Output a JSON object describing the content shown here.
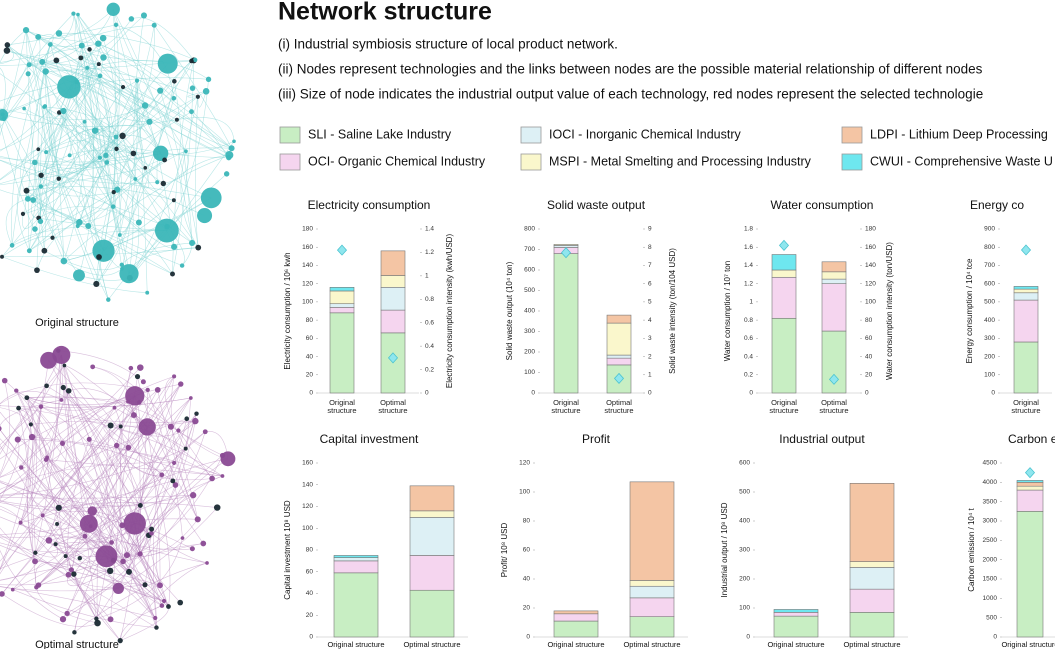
{
  "header": {
    "title": "Network structure",
    "lines": [
      "(i) Industrial symbiosis structure of local product network.",
      "(ii) Nodes represent technologies and the links between nodes are the possible material relationship of different nodes",
      "(iii) Size of node indicates the industrial output value of each technology, red nodes represent the selected technologie"
    ]
  },
  "network_labels": [
    "Original structure",
    "Optimal structure"
  ],
  "legend": [
    {
      "name": "SLI - Saline Lake Industry",
      "color": "#c8eec3"
    },
    {
      "name": "OCI- Organic Chemical Industry",
      "color": "#f5d5ef"
    },
    {
      "name": "IOCI - Inorganic Chemical Industry",
      "color": "#ddf0f5"
    },
    {
      "name": "MSPI - Metal Smelting and Processing Industry",
      "color": "#faf7cc"
    },
    {
      "name": "LDPI - Lithium Deep Processing",
      "color": "#f4c5a4"
    },
    {
      "name": "CWUI - Comprehensive Waste U",
      "color": "#6ee7ef"
    }
  ],
  "chart_data": [
    {
      "type": "bar",
      "title": "Electricity consumption",
      "ylabel": "Electricity consumption / 10⁶ kwh",
      "y2label": "Electricity consumption intensity (kwh/USD)",
      "categories": [
        "Original structure",
        "Optimal structure"
      ],
      "series": [
        {
          "values": [
            88,
            66
          ]
        },
        {
          "values": [
            6,
            25
          ]
        },
        {
          "values": [
            4,
            25
          ]
        },
        {
          "values": [
            14,
            13
          ]
        },
        {
          "values": [
            0,
            27
          ]
        },
        {
          "values": [
            4,
            0
          ]
        }
      ],
      "markers": {
        "axis": "y2",
        "values": [
          1.22,
          0.3
        ]
      },
      "ylim": [
        0,
        180
      ],
      "yticks": [
        0,
        20,
        40,
        60,
        80,
        100,
        120,
        140,
        160,
        180
      ],
      "y2lim": [
        0,
        1.4
      ],
      "y2ticks": [
        0,
        0.2,
        0.4,
        0.6,
        0.8,
        1,
        1.2,
        1.4
      ]
    },
    {
      "type": "bar",
      "title": "Solid waste output",
      "ylabel": "Solid waste output (10⁴ ton)",
      "y2label": "Solid waste intensity (ton/104 USD)",
      "categories": [
        "Original structure",
        "Optimal structure"
      ],
      "series": [
        {
          "values": [
            680,
            137
          ]
        },
        {
          "values": [
            30,
            33
          ]
        },
        {
          "values": [
            10,
            15
          ]
        },
        {
          "values": [
            5,
            156
          ]
        },
        {
          "values": [
            0,
            39
          ]
        },
        {
          "values": [
            0,
            0
          ]
        }
      ],
      "markers": {
        "axis": "y2",
        "values": [
          7.7,
          0.8
        ]
      },
      "ylim": [
        0,
        800
      ],
      "yticks": [
        0,
        100,
        200,
        300,
        400,
        500,
        600,
        700,
        800
      ],
      "y2lim": [
        0,
        9
      ],
      "y2ticks": [
        0,
        1,
        2,
        3,
        4,
        5,
        6,
        7,
        8,
        9
      ]
    },
    {
      "type": "bar",
      "title": "Water consumption",
      "ylabel": "Water consumption / 10⁷ ton",
      "y2label": "Water consumption intensity (ton/USD)",
      "categories": [
        "Original structure",
        "Optimal structure"
      ],
      "series": [
        {
          "values": [
            0.82,
            0.68
          ]
        },
        {
          "values": [
            0.45,
            0.52
          ]
        },
        {
          "values": [
            0,
            0.05
          ]
        },
        {
          "values": [
            0.08,
            0.08
          ]
        },
        {
          "values": [
            0,
            0.11
          ]
        },
        {
          "values": [
            0.17,
            0
          ]
        }
      ],
      "markers": {
        "axis": "y2",
        "values": [
          162,
          15
        ]
      },
      "ylim": [
        0,
        1.8
      ],
      "yticks": [
        0,
        0.2,
        0.4,
        0.6,
        0.8,
        1,
        1.2,
        1.4,
        1.6,
        1.8
      ],
      "y2lim": [
        0,
        180
      ],
      "y2ticks": [
        0,
        20,
        40,
        60,
        80,
        100,
        120,
        140,
        160,
        180
      ]
    },
    {
      "type": "bar",
      "title": "Energy co",
      "ylabel": "Energy consumption / 10⁴ tce",
      "categories": [
        "Original structure"
      ],
      "series": [
        {
          "values": [
            280
          ]
        },
        {
          "values": [
            230
          ]
        },
        {
          "values": [
            40
          ]
        },
        {
          "values": [
            20
          ]
        },
        {
          "values": [
            0
          ]
        },
        {
          "values": [
            15
          ]
        }
      ],
      "markers": {
        "axis": "y",
        "values": [
          785
        ]
      },
      "ylim": [
        0,
        900
      ],
      "yticks": [
        0,
        100,
        200,
        300,
        400,
        500,
        600,
        700,
        800,
        900
      ]
    },
    {
      "type": "bar",
      "title": "Capital investment",
      "ylabel": "Capital investment 10⁸ USD",
      "categories": [
        "Original structure",
        "Optimal structure"
      ],
      "series": [
        {
          "values": [
            59,
            43
          ]
        },
        {
          "values": [
            11,
            32
          ]
        },
        {
          "values": [
            3,
            35
          ]
        },
        {
          "values": [
            0,
            6
          ]
        },
        {
          "values": [
            0,
            23
          ]
        },
        {
          "values": [
            2,
            0
          ]
        }
      ],
      "ylim": [
        0,
        160
      ],
      "yticks": [
        0,
        20,
        40,
        60,
        80,
        100,
        120,
        140,
        160
      ]
    },
    {
      "type": "bar",
      "title": "Profit",
      "ylabel": "Profit/ 10⁸ USD",
      "categories": [
        "Original structure",
        "Optimal structure"
      ],
      "series": [
        {
          "values": [
            11,
            14
          ]
        },
        {
          "values": [
            5,
            13
          ]
        },
        {
          "values": [
            0,
            8
          ]
        },
        {
          "values": [
            0,
            4
          ]
        },
        {
          "values": [
            2,
            68
          ]
        },
        {
          "values": [
            0,
            0
          ]
        }
      ],
      "ylim": [
        0,
        120
      ],
      "yticks": [
        0,
        20,
        40,
        60,
        80,
        100,
        120
      ]
    },
    {
      "type": "bar",
      "title": "Industrial output",
      "ylabel": "Industrial output / 10⁸ USD",
      "categories": [
        "Original structure",
        "Optimal structure"
      ],
      "series": [
        {
          "values": [
            72,
            85
          ]
        },
        {
          "values": [
            13,
            80
          ]
        },
        {
          "values": [
            0,
            75
          ]
        },
        {
          "values": [
            0,
            20
          ]
        },
        {
          "values": [
            0,
            270
          ]
        },
        {
          "values": [
            10,
            0
          ]
        }
      ],
      "ylim": [
        0,
        600
      ],
      "yticks": [
        0,
        100,
        200,
        300,
        400,
        500,
        600
      ]
    },
    {
      "type": "bar",
      "title": "Carbon e",
      "ylabel": "Carbon emission / 10⁴ t",
      "categories": [
        "Original structure"
      ],
      "series": [
        {
          "values": [
            3250
          ]
        },
        {
          "values": [
            550
          ]
        },
        {
          "values": [
            0
          ]
        },
        {
          "values": [
            100
          ]
        },
        {
          "values": [
            100
          ]
        },
        {
          "values": [
            50
          ]
        }
      ],
      "markers": {
        "axis": "y",
        "values": [
          4250
        ]
      },
      "ylim": [
        0,
        4500
      ],
      "yticks": [
        0,
        500,
        1000,
        1500,
        2000,
        2500,
        3000,
        3500,
        4000,
        4500
      ]
    }
  ]
}
